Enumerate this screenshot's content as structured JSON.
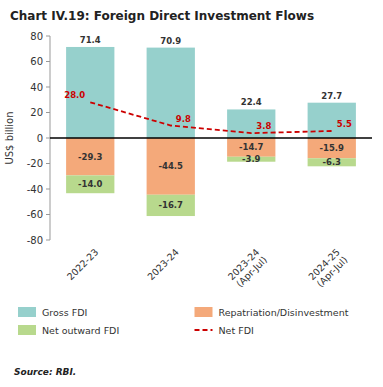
{
  "chart_data": {
    "type": "bar",
    "title": "Chart IV.19: Foreign Direct Investment Flows",
    "ylabel": "US$ billion",
    "annotations": [
      "Source: RBI."
    ],
    "categories": [
      "2022-23",
      "2023-24",
      "2023-24\n(Apr-Jul)",
      "2024-25\n(Apr-Jul)"
    ],
    "series": [
      {
        "name": "Gross FDI",
        "type": "bar",
        "color": "#96d0cc",
        "values": [
          71.4,
          70.9,
          22.4,
          27.7
        ],
        "value_labels": [
          "71.4",
          "70.9",
          "22.4",
          "27.7"
        ]
      },
      {
        "name": "Repatriation/Disinvestment",
        "type": "bar",
        "color": "#f4a97a",
        "values": [
          -29.3,
          -44.5,
          -14.7,
          -15.9
        ],
        "value_labels": [
          "-29.3",
          "-44.5",
          "-14.7",
          "-15.9"
        ]
      },
      {
        "name": "Net outward FDI",
        "type": "bar",
        "color": "#b8d98d",
        "values": [
          -14.0,
          -16.7,
          -3.9,
          -6.3
        ],
        "value_labels": [
          "-14.0",
          "-16.7",
          "-3.9",
          "-6.3"
        ]
      },
      {
        "name": "Net FDI",
        "type": "line",
        "color": "#cc0000",
        "line_style": "dashed",
        "values": [
          28.0,
          9.8,
          3.8,
          5.5
        ],
        "value_labels": [
          "28.0",
          "9.8",
          "3.8",
          "5.5"
        ]
      }
    ],
    "ylim": [
      -80,
      80
    ],
    "yticks": [
      -80,
      -60,
      -40,
      -20,
      0,
      20,
      40,
      60,
      80
    ],
    "stacked": true,
    "data_labels": true,
    "grid": false,
    "legend": "bottom"
  }
}
